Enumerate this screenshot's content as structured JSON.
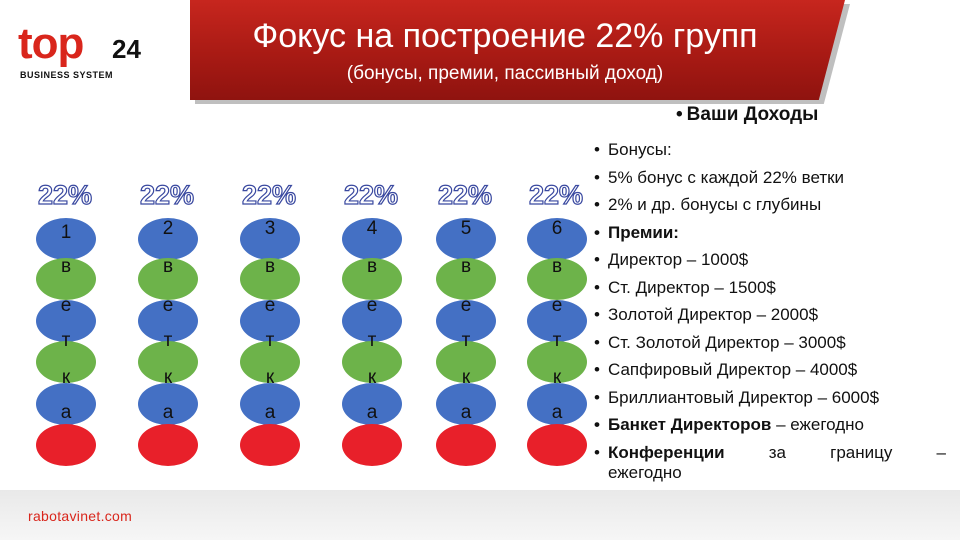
{
  "logo": {
    "word": "top",
    "number": "24",
    "tagline": "BUSINESS SYSTEM"
  },
  "header": {
    "title": "Фокус на построение 22% групп",
    "subtitle": "(бонусы, премии, пассивный доход)"
  },
  "groups": [
    {
      "percent": "22%",
      "number": "1",
      "word": [
        "в",
        "е",
        "т",
        "к",
        "а"
      ]
    },
    {
      "percent": "22%",
      "number": "2",
      "word": [
        "в",
        "е",
        "т",
        "к",
        "а"
      ]
    },
    {
      "percent": "22%",
      "number": "3",
      "word": [
        "в",
        "е",
        "т",
        "к",
        "а"
      ]
    },
    {
      "percent": "22%",
      "number": "4",
      "word": [
        "в",
        "е",
        "т",
        "к",
        "а"
      ]
    },
    {
      "percent": "22%",
      "number": "5",
      "word": [
        "в",
        "е",
        "т",
        "к",
        "а"
      ]
    },
    {
      "percent": "22%",
      "number": "6",
      "word": [
        "в",
        "е",
        "т",
        "к",
        "а"
      ]
    }
  ],
  "colors": {
    "banner": "#b51f18",
    "circle_blue": "#4470c4",
    "circle_green": "#6db34a",
    "circle_red": "#e8202a",
    "percent_outline": "#3a49a0"
  },
  "income": {
    "heading": "Ваши Доходы",
    "items": [
      "Бонусы:",
      "5% бонус с каждой 22% ветки",
      "2%  и др. бонусы с глубины",
      "Премии:",
      "Директор – 1000$",
      "Ст. Директор – 1500$",
      "Золотой Директор – 2000$",
      "Ст. Золотой Директор – 3000$",
      "Сапфировый Директор – 4000$",
      "Бриллиантовый Директор – 6000$"
    ],
    "banquet": {
      "bold": "Банкет Директоров",
      "rest": " – ежегодно"
    },
    "conferences": {
      "bold": "Конференции",
      "w1": "за",
      "w2": "границу",
      "w3": "–",
      "line2": "ежегодно"
    }
  },
  "footer": {
    "site": "rabotavinet.com"
  }
}
